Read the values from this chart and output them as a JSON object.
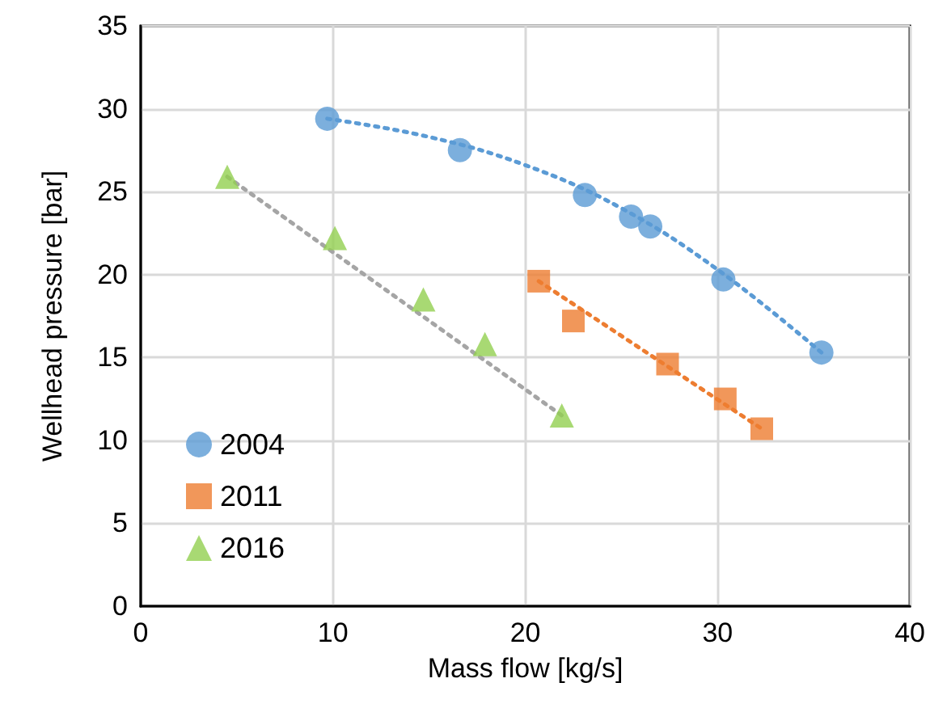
{
  "chart_data": {
    "type": "scatter",
    "xlabel": "Mass flow [kg/s]",
    "ylabel": "Wellhead pressure [bar]",
    "xlim": [
      0,
      40
    ],
    "xticks": [
      0,
      10,
      20,
      30,
      40
    ],
    "ylim": [
      0,
      35
    ],
    "yticks": [
      0,
      5,
      10,
      15,
      20,
      25,
      30,
      35
    ],
    "grid": true,
    "legend": "bottom left",
    "series": [
      {
        "name": "2004",
        "color": "#5b9bd5",
        "marker": "circle",
        "x": [
          9.7,
          16.6,
          23.1,
          25.5,
          26.5,
          30.3,
          35.4
        ],
        "values": [
          29.4,
          27.5,
          24.8,
          23.5,
          22.9,
          19.7,
          15.3
        ]
      },
      {
        "name": "2011",
        "color": "#ed7d31",
        "marker": "square",
        "x": [
          20.7,
          22.5,
          27.4,
          30.4,
          32.3
        ],
        "values": [
          19.6,
          17.2,
          14.6,
          12.5,
          10.7
        ]
      },
      {
        "name": "2016",
        "color": "#92d050",
        "marker": "triangle",
        "x": [
          4.5,
          10.1,
          14.7,
          17.9,
          21.9
        ],
        "values": [
          25.9,
          22.2,
          18.5,
          15.8,
          11.5
        ]
      },
      {
        "type": "line",
        "color": "#5b9bd5",
        "marker": "none",
        "line_style": "dotted",
        "x": [
          9.7,
          15,
          20,
          25,
          30,
          35.4
        ],
        "values": [
          29.4,
          28.3,
          26.6,
          24.0,
          20.3,
          15.3
        ]
      },
      {
        "type": "line",
        "color": "#ed7d31",
        "marker": "none",
        "line_style": "dotted",
        "x": [
          20.7,
          32.3
        ],
        "values": [
          19.6,
          10.7
        ]
      },
      {
        "type": "line",
        "color": "#a5a5a5",
        "marker": "none",
        "line_style": "dotted",
        "x": [
          4.5,
          21.9
        ],
        "values": [
          25.9,
          11.5
        ]
      }
    ]
  }
}
